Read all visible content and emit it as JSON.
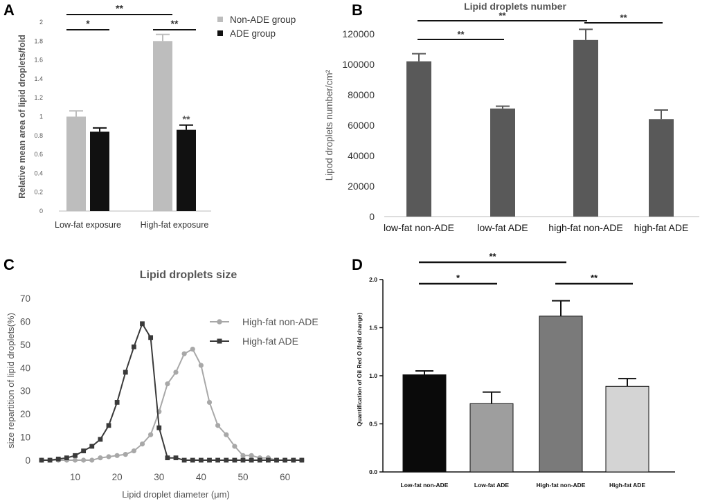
{
  "panels": [
    {
      "letter": "A"
    },
    {
      "letter": "B"
    },
    {
      "letter": "C"
    },
    {
      "letter": "D"
    }
  ],
  "chart_data": [
    {
      "panel": "A",
      "type": "bar",
      "title": "",
      "ylabel": "Relative mean area of lipid droplets/fold",
      "xlabel": "",
      "ylim": [
        0,
        2
      ],
      "yticks": [
        "0",
        "0.2",
        "0.4",
        "0.6",
        "0.8",
        "1",
        "1.2",
        "1.4",
        "1.6",
        "1.8",
        "2"
      ],
      "categories": [
        "Low-fat exposure",
        "High-fat exposure"
      ],
      "series": [
        {
          "name": "Non-ADE group",
          "color": "#bdbdbd",
          "values": [
            1.0,
            1.8
          ],
          "errors": [
            0.06,
            0.07
          ]
        },
        {
          "name": "ADE  group",
          "color": "#111111",
          "values": [
            0.84,
            0.86
          ],
          "errors": [
            0.04,
            0.05
          ]
        }
      ],
      "annotations": [
        {
          "text": "**",
          "type": "bracket",
          "from": "Low-fat exposure:Non-ADE group",
          "to": "High-fat exposure:Non-ADE group"
        },
        {
          "text": "*",
          "type": "bracket",
          "from": "Low-fat exposure:Non-ADE group",
          "to": "Low-fat exposure:ADE  group"
        },
        {
          "text": "**",
          "type": "bracket",
          "from": "High-fat exposure:Non-ADE group",
          "to": "High-fat exposure:ADE  group"
        },
        {
          "text": "**",
          "type": "label",
          "on": "High-fat exposure:ADE  group"
        }
      ]
    },
    {
      "panel": "B",
      "type": "bar",
      "title": "Lipid droplets number",
      "ylabel": "Lipod droplets number/cm²",
      "xlabel": "",
      "ylim": [
        0,
        120000
      ],
      "yticks": [
        "0",
        "20000",
        "40000",
        "60000",
        "80000",
        "100000",
        "120000"
      ],
      "categories": [
        "low-fat non-ADE",
        "low-fat ADE",
        "high-fat non-ADE",
        "high-fat ADE"
      ],
      "values": [
        102000,
        71000,
        116000,
        64000
      ],
      "errors": [
        5000,
        1500,
        7000,
        6000
      ],
      "color": "#595959",
      "annotations": [
        {
          "text": "**",
          "from": "low-fat non-ADE",
          "to": "low-fat ADE"
        },
        {
          "text": "**",
          "from": "low-fat non-ADE",
          "to": "high-fat non-ADE"
        },
        {
          "text": "**",
          "from": "high-fat non-ADE",
          "to": "high-fat ADE"
        }
      ]
    },
    {
      "panel": "C",
      "type": "line",
      "title": "Lipid droplets size",
      "xlabel": "Lipid droplet diameter (μm)",
      "ylabel": "size repartition of lipid droplets(%)",
      "xlim": [
        2,
        66
      ],
      "ylim": [
        0,
        70
      ],
      "xticks": [
        "10",
        "20",
        "30",
        "40",
        "50",
        "60"
      ],
      "yticks": [
        "0",
        "10",
        "20",
        "30",
        "40",
        "50",
        "60",
        "70"
      ],
      "legend": "top-right",
      "x": [
        2,
        4,
        6,
        8,
        10,
        12,
        14,
        16,
        18,
        20,
        22,
        24,
        26,
        28,
        30,
        32,
        34,
        36,
        38,
        40,
        42,
        44,
        46,
        48,
        50,
        52,
        54,
        56,
        58,
        60,
        62,
        64
      ],
      "series": [
        {
          "name": "High-fat non-ADE",
          "color": "#a8a8a8",
          "marker": "circle",
          "values": [
            0,
            0,
            0,
            0,
            0,
            0,
            0,
            1,
            1.5,
            2,
            2.5,
            4,
            7,
            11,
            21,
            33,
            38,
            46,
            48,
            41,
            25,
            15,
            11,
            6,
            2,
            2,
            1,
            1,
            0,
            0,
            0,
            0
          ]
        },
        {
          "name": "High-fat ADE",
          "color": "#3a3a3a",
          "marker": "square",
          "values": [
            0,
            0,
            0.5,
            1,
            2,
            4,
            6,
            9,
            15,
            25,
            38,
            49,
            59,
            53,
            14,
            1,
            1,
            0,
            0,
            0,
            0,
            0,
            0,
            0,
            0,
            0,
            0,
            0,
            0,
            0,
            0,
            0
          ]
        }
      ]
    },
    {
      "panel": "D",
      "type": "bar",
      "title": "",
      "ylabel": "Quantification of Oil Red O  (fold change)",
      "xlabel": "",
      "ylim": [
        0,
        2
      ],
      "yticks": [
        "0.0",
        "0.5",
        "1.0",
        "1.5",
        "2.0"
      ],
      "categories": [
        "Low-fat non-ADE",
        "Low-fat ADE",
        "High-fat non-ADE",
        "High-fat ADE"
      ],
      "values": [
        1.01,
        0.71,
        1.62,
        0.89
      ],
      "errors": [
        0.04,
        0.12,
        0.16,
        0.08
      ],
      "colors": [
        "#0a0a0a",
        "#9e9e9e",
        "#7a7a7a",
        "#d4d4d4"
      ],
      "annotations": [
        {
          "text": "**",
          "from": "Low-fat non-ADE",
          "to": "High-fat non-ADE"
        },
        {
          "text": "*",
          "from": "Low-fat non-ADE",
          "to": "Low-fat ADE"
        },
        {
          "text": "**",
          "from": "High-fat non-ADE",
          "to": "High-fat ADE"
        }
      ]
    }
  ]
}
